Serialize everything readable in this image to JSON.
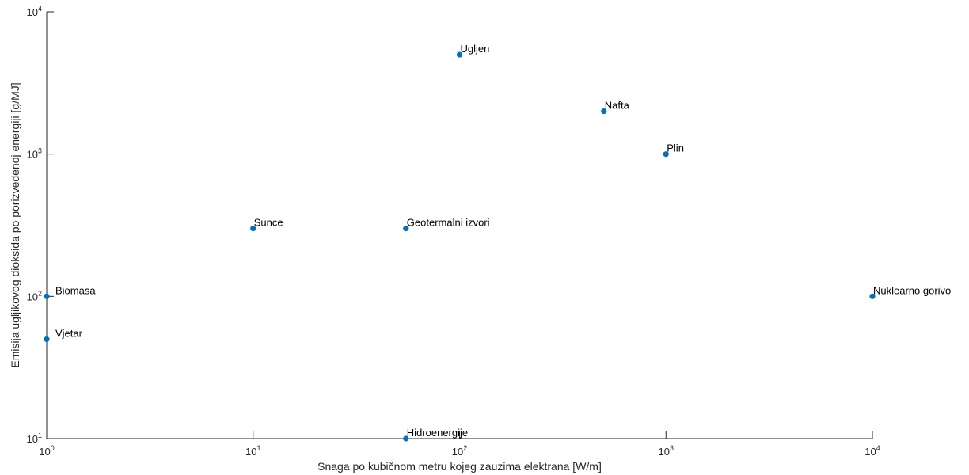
{
  "chart_data": {
    "type": "scatter",
    "title": "",
    "xlabel": "Snaga po kubičnom metru kojeg zauzima elektrana [W/m]",
    "ylabel": "Emisija ugljikovog dioksida po porizvedenoj energiji [g/MJ]",
    "xscale": "log",
    "yscale": "log",
    "xlim": [
      1,
      10000
    ],
    "ylim": [
      10,
      10000
    ],
    "grid": false,
    "marker_color": "#0072BD",
    "x_ticks": [
      {
        "base": "10",
        "exp": "0"
      },
      {
        "base": "10",
        "exp": "1"
      },
      {
        "base": "10",
        "exp": "2"
      },
      {
        "base": "10",
        "exp": "3"
      },
      {
        "base": "10",
        "exp": "4"
      }
    ],
    "y_ticks": [
      {
        "base": "10",
        "exp": "1"
      },
      {
        "base": "10",
        "exp": "2"
      },
      {
        "base": "10",
        "exp": "3"
      },
      {
        "base": "10",
        "exp": "4"
      }
    ],
    "points": [
      {
        "label": "Ugljen",
        "x": 100,
        "y": 5000
      },
      {
        "label": "Nafta",
        "x": 500,
        "y": 2000
      },
      {
        "label": "Plin",
        "x": 1000,
        "y": 1000
      },
      {
        "label": "Sunce",
        "x": 10,
        "y": 300
      },
      {
        "label": "Geotermalni izvori",
        "x": 55,
        "y": 300
      },
      {
        "label": "Biomasa",
        "x": 1,
        "y": 100
      },
      {
        "label": "Nuklearno gorivo",
        "x": 10000,
        "y": 100
      },
      {
        "label": "Vjetar",
        "x": 1,
        "y": 50
      },
      {
        "label": "Hidroenergije",
        "x": 55,
        "y": 10
      }
    ]
  }
}
